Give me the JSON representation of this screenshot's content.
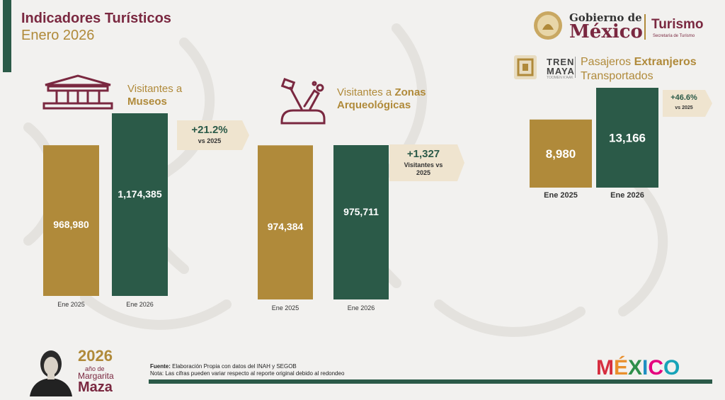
{
  "header": {
    "title": "Indicadores Turísticos",
    "subtitle": "Enero 2026"
  },
  "logos": {
    "gobierno_line1": "Gobierno de",
    "gobierno_line2": "México",
    "turismo": "Turismo",
    "secretaria": "Secretaría de Turismo",
    "tren_line1": "TREN",
    "tren_line2": "MAYA",
    "tren_line3": "TOOMEN K'AAK",
    "mexico_brand": [
      "M",
      "É",
      "X",
      "I",
      "C",
      "O"
    ],
    "mexico_colors": [
      "#d62e3f",
      "#e98f2c",
      "#2f8f4b",
      "#1f8fc2",
      "#e5007e",
      "#17a3b8"
    ]
  },
  "colors": {
    "year_2025": "#b08a3a",
    "year_2026": "#2b5a48",
    "maroon": "#7a2840",
    "callout": "#efe4cf"
  },
  "panels": {
    "museos": {
      "label_prefix": "Visitantes a",
      "label_bold": "Museos"
    },
    "zonas": {
      "label_prefix": "Visitantes a",
      "label_bold": "Zonas",
      "label_line2": "Arqueológicas"
    },
    "pasajeros": {
      "label_prefix": "Pasajeros",
      "label_bold": "Extranjeros",
      "label_line2": "Transportados"
    }
  },
  "chart_data": [
    {
      "type": "bar",
      "title": "Visitantes a Museos",
      "categories": [
        "Ene 2025",
        "Ene 2026"
      ],
      "values": [
        968980,
        1174385
      ],
      "value_labels": [
        "968,980",
        "1,174,385"
      ],
      "change": {
        "value": "+21.2%",
        "note": "vs 2025"
      }
    },
    {
      "type": "bar",
      "title": "Visitantes a Zonas Arqueológicas",
      "categories": [
        "Ene 2025",
        "Ene 2026"
      ],
      "values": [
        974384,
        975711
      ],
      "value_labels": [
        "974,384",
        "975,711"
      ],
      "change": {
        "value": "+1,327",
        "note": "Visitantes vs 2025"
      }
    },
    {
      "type": "bar",
      "title": "Pasajeros Extranjeros Transportados",
      "categories": [
        "Ene  2025",
        "Ene 2026"
      ],
      "values": [
        8980,
        13166
      ],
      "value_labels": [
        "8,980",
        "13,166"
      ],
      "change": {
        "value": "+46.6%",
        "note": "vs 2025"
      }
    }
  ],
  "footer": {
    "source_label": "Fuente:",
    "source_text": "Elaboración Propia con datos del INAH y SEGOB",
    "note_text": "Nota: Las cifras pueden variar respecto al reporte original debido al redondeo"
  },
  "anniversary": {
    "year": "2026",
    "ano_de": "año de",
    "name1": "Margarita",
    "name2": "Maza"
  }
}
